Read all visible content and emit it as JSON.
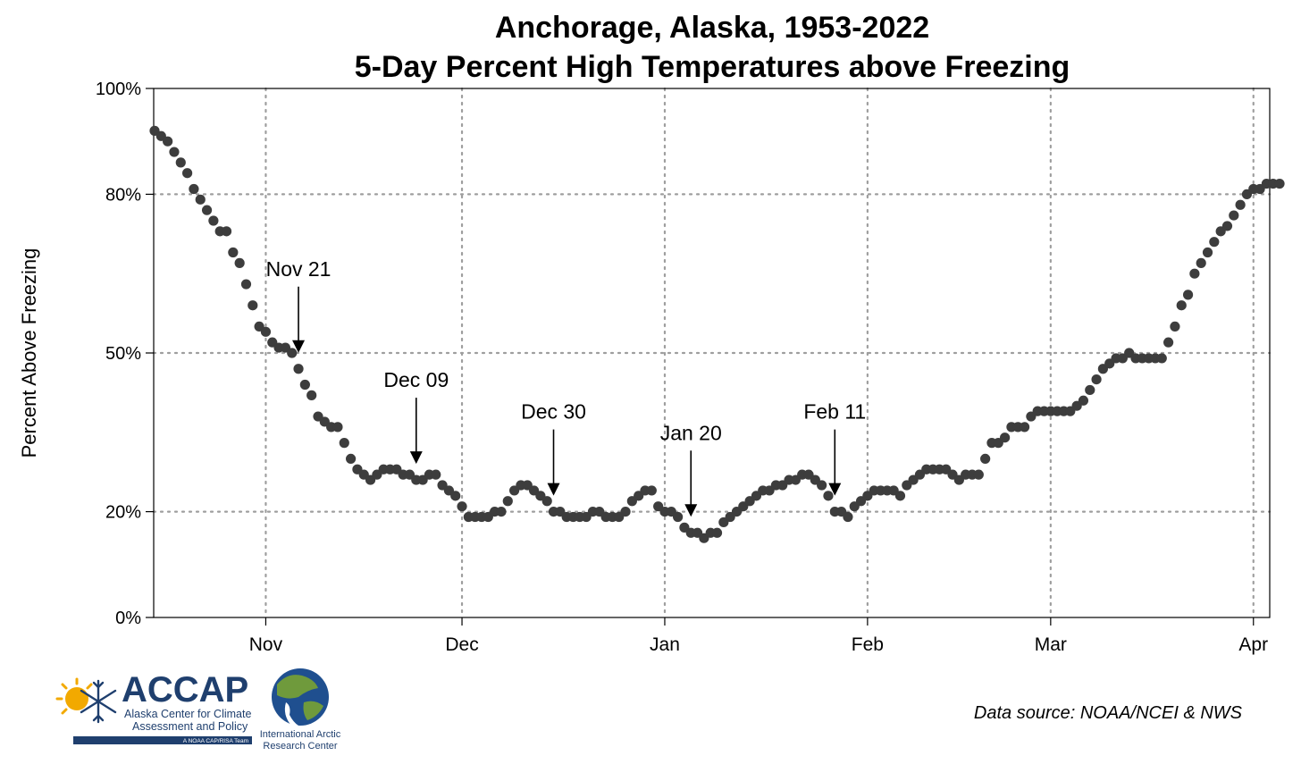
{
  "chart_data": {
    "type": "scatter",
    "title": "Anchorage, Alaska, 1953-2022",
    "subtitle": "5-Day Percent High Temperatures above Freezing",
    "xlabel": "",
    "ylabel": "Percent Above Freezing",
    "x_tick_labels": [
      "Nov",
      "Dec",
      "Jan",
      "Feb",
      "Mar",
      "Apr"
    ],
    "y_tick_labels": [
      "0%",
      "20%",
      "50%",
      "80%",
      "100%"
    ],
    "y_ticks": [
      0,
      20,
      50,
      80,
      100
    ],
    "ylim": [
      0,
      100
    ],
    "grid": true,
    "marker_color": "#3d3d3d",
    "series": [
      {
        "values": [
          92,
          91,
          90,
          88,
          86,
          84,
          81,
          79,
          77,
          75,
          73,
          73,
          69,
          67,
          63,
          59,
          55,
          54,
          52,
          51,
          51,
          50,
          47,
          44,
          42,
          38,
          37,
          36,
          36,
          33,
          30,
          28,
          27,
          26,
          27,
          28,
          28,
          28,
          27,
          27,
          26,
          26,
          27,
          27,
          25,
          24,
          23,
          21,
          19,
          19,
          19,
          19,
          20,
          20,
          22,
          24,
          25,
          25,
          24,
          23,
          22,
          20,
          20,
          19,
          19,
          19,
          19,
          20,
          20,
          19,
          19,
          19,
          20,
          22,
          23,
          24,
          24,
          21,
          20,
          20,
          19,
          17,
          16,
          16,
          15,
          16,
          16,
          18,
          19,
          20,
          21,
          22,
          23,
          24,
          24,
          25,
          25,
          26,
          26,
          27,
          27,
          26,
          25,
          23,
          20,
          20,
          19,
          21,
          22,
          23,
          24,
          24,
          24,
          24,
          23,
          25,
          26,
          27,
          28,
          28,
          28,
          28,
          27,
          26,
          27,
          27,
          27,
          30,
          33,
          33,
          34,
          36,
          36,
          36,
          38,
          39,
          39,
          39,
          39,
          39,
          39,
          40,
          41,
          43,
          45,
          47,
          48,
          49,
          49,
          50,
          49,
          49,
          49,
          49,
          49,
          52,
          55,
          59,
          61,
          65,
          67,
          69,
          71,
          73,
          74,
          76,
          78,
          80,
          81,
          81,
          82,
          82,
          82
        ]
      }
    ],
    "annotations": [
      {
        "label": "Nov 21",
        "day": 22
      },
      {
        "label": "Dec 09",
        "day": 40
      },
      {
        "label": "Dec 30",
        "day": 61
      },
      {
        "label": "Jan 20",
        "day": 82
      },
      {
        "label": "Feb 11",
        "day": 104
      }
    ],
    "source": "Data source: NOAA/NCEI & NWS"
  },
  "logos": {
    "accap": {
      "name": "ACCAP",
      "line1": "Alaska Center for Climate",
      "line2": "Assessment and Policy",
      "tagline": "A NOAA CAP/RISA Team"
    },
    "iarc": {
      "line1": "International Arctic",
      "line2": "Research Center"
    }
  },
  "colors": {
    "marker": "#3d3d3d",
    "grid": "#9e9e9e",
    "accap_navy": "#1f3f6e",
    "accap_sun": "#f2a900"
  }
}
